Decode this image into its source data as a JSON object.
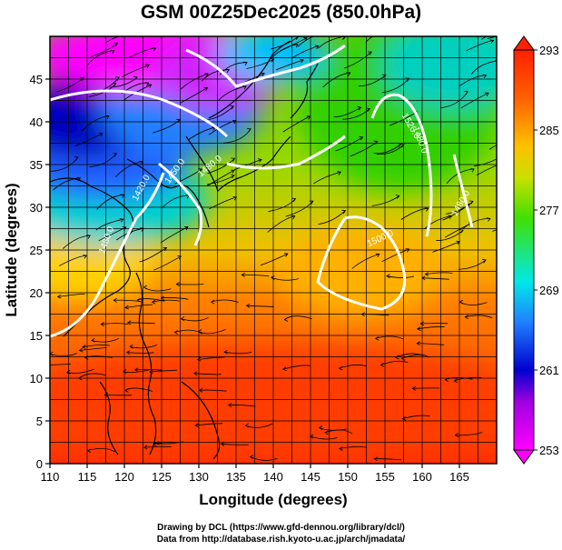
{
  "title": "GSM 00Z25Dec2025 (850.0hPa)",
  "xlabel": "Longitude (degrees)",
  "ylabel": "Latitude  (degrees)",
  "xticks": [
    "110",
    "115",
    "120",
    "125",
    "130",
    "135",
    "140",
    "145",
    "150",
    "155",
    "160",
    "165"
  ],
  "yticks": [
    "0",
    "5",
    "10",
    "15",
    "20",
    "25",
    "30",
    "35",
    "40",
    "45"
  ],
  "xlim": [
    110,
    170
  ],
  "ylim": [
    0,
    50
  ],
  "colorbar": {
    "labels": [
      "293",
      "285",
      "277",
      "269",
      "261",
      "253"
    ],
    "values": [
      293,
      285,
      277,
      269,
      261,
      253
    ],
    "min": 253,
    "max": 293,
    "colors": [
      "#ff00ff",
      "#0000d0",
      "#2080ff",
      "#00e8e8",
      "#40e000",
      "#c8e000",
      "#ffc000",
      "#ff6000",
      "#ff2000"
    ]
  },
  "contour_labels": [
    "1420.0",
    "1450.0",
    "1480.0",
    "1500.0",
    "1480.0",
    "1520.0",
    "1480.0",
    "1480.0"
  ],
  "credits": {
    "line1": "Drawing by DCL (https://www.gfd-dennou.org/library/dcl/)",
    "line2": "Data from http://database.rish.kyoto-u.ac.jp/arch/jmadata/"
  }
}
